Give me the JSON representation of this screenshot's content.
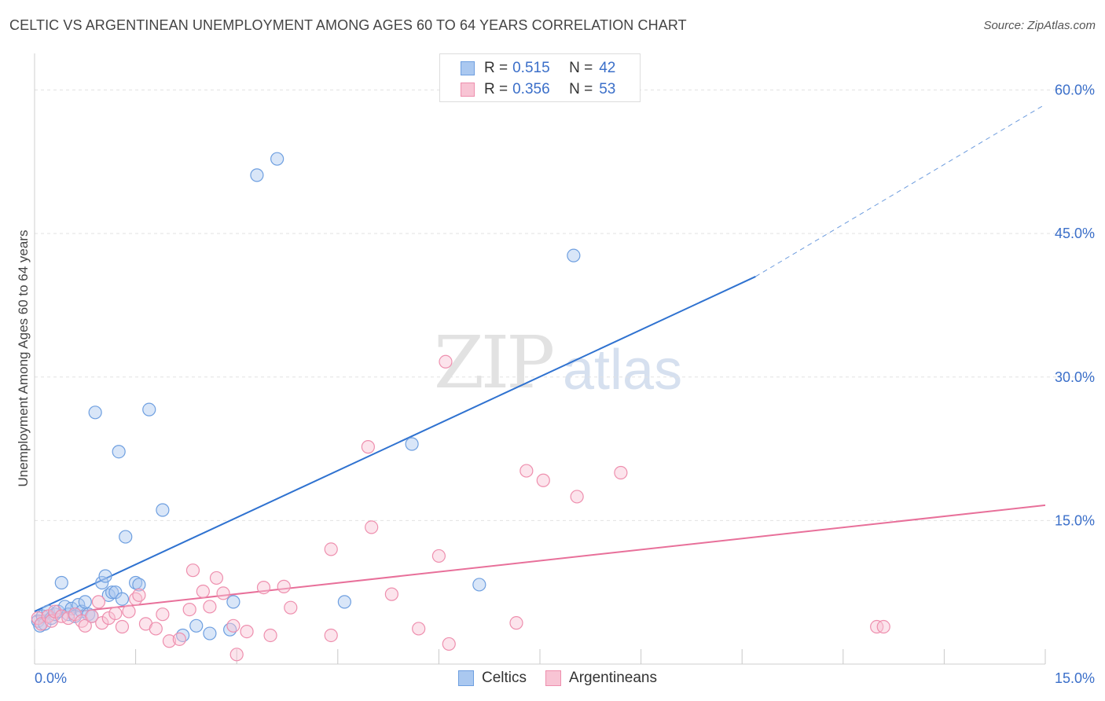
{
  "header": {
    "title": "CELTIC VS ARGENTINEAN UNEMPLOYMENT AMONG AGES 60 TO 64 YEARS CORRELATION CHART",
    "source": "Source: ZipAtlas.com"
  },
  "watermark": {
    "zip": "ZIP",
    "atlas": "atlas"
  },
  "legend_top": [
    {
      "r_label": "R =",
      "r_value": "0.515",
      "n_label": "N =",
      "n_value": "42",
      "color": "#aac8f0",
      "border": "#6e9fe0"
    },
    {
      "r_label": "R =",
      "r_value": "0.356",
      "n_label": "N =",
      "n_value": "53",
      "color": "#f8c4d4",
      "border": "#ee8fae"
    }
  ],
  "legend_bottom": [
    {
      "label": "Celtics",
      "color": "#aac8f0",
      "border": "#6e9fe0"
    },
    {
      "label": "Argentineans",
      "color": "#f8c4d4",
      "border": "#ee8fae"
    }
  ],
  "chart_data": {
    "type": "scatter",
    "title": "CELTIC VS ARGENTINEAN UNEMPLOYMENT AMONG AGES 60 TO 64 YEARS CORRELATION CHART",
    "xlabel": "",
    "ylabel": "Unemployment Among Ages 60 to 64 years",
    "xlim": [
      0,
      15
    ],
    "ylim": [
      0,
      63
    ],
    "x_tick_labels": [
      {
        "value": 0,
        "label": "0.0%"
      },
      {
        "value": 15,
        "label": "15.0%"
      }
    ],
    "y_tick_labels": [
      {
        "value": 15,
        "label": "15.0%"
      },
      {
        "value": 30,
        "label": "30.0%"
      },
      {
        "value": 45,
        "label": "45.0%"
      },
      {
        "value": 60,
        "label": "60.0%"
      }
    ],
    "grid": true,
    "colors": {
      "celtics": "#2f72d0",
      "argentineans": "#e8709a",
      "tick_label": "#3b6fc9"
    },
    "series": [
      {
        "name": "Celtics",
        "points": [
          [
            0.05,
            4.5
          ],
          [
            0.08,
            4.0
          ],
          [
            0.12,
            5.0
          ],
          [
            0.15,
            4.2
          ],
          [
            0.2,
            5.5
          ],
          [
            0.25,
            4.8
          ],
          [
            0.3,
            5.2
          ],
          [
            0.35,
            5.5
          ],
          [
            0.4,
            8.5
          ],
          [
            0.45,
            6.0
          ],
          [
            0.5,
            5.2
          ],
          [
            0.55,
            5.8
          ],
          [
            0.6,
            5.0
          ],
          [
            0.65,
            6.2
          ],
          [
            0.7,
            5.5
          ],
          [
            0.75,
            6.5
          ],
          [
            0.8,
            5.2
          ],
          [
            0.85,
            5.0
          ],
          [
            0.9,
            26.3
          ],
          [
            1.0,
            8.5
          ],
          [
            1.05,
            9.2
          ],
          [
            1.1,
            7.2
          ],
          [
            1.15,
            7.5
          ],
          [
            1.25,
            22.2
          ],
          [
            1.2,
            7.5
          ],
          [
            1.3,
            6.8
          ],
          [
            1.35,
            13.3
          ],
          [
            1.5,
            8.5
          ],
          [
            1.55,
            8.3
          ],
          [
            1.7,
            26.6
          ],
          [
            1.9,
            16.1
          ],
          [
            2.2,
            3.0
          ],
          [
            2.4,
            4.0
          ],
          [
            2.6,
            3.2
          ],
          [
            2.9,
            3.6
          ],
          [
            2.95,
            6.5
          ],
          [
            3.3,
            51.1
          ],
          [
            3.6,
            52.8
          ],
          [
            4.6,
            6.5
          ],
          [
            5.6,
            23.0
          ],
          [
            6.6,
            8.3
          ],
          [
            8.0,
            42.7
          ]
        ]
      },
      {
        "name": "Argentineans",
        "points": [
          [
            0.05,
            4.8
          ],
          [
            0.1,
            4.2
          ],
          [
            0.2,
            5.0
          ],
          [
            0.25,
            4.5
          ],
          [
            0.3,
            5.5
          ],
          [
            0.4,
            5.0
          ],
          [
            0.5,
            4.8
          ],
          [
            0.6,
            5.2
          ],
          [
            0.7,
            4.5
          ],
          [
            0.75,
            4.0
          ],
          [
            0.85,
            5.0
          ],
          [
            0.95,
            6.5
          ],
          [
            1.0,
            4.3
          ],
          [
            1.1,
            4.8
          ],
          [
            1.2,
            5.3
          ],
          [
            1.3,
            3.9
          ],
          [
            1.4,
            5.5
          ],
          [
            1.5,
            6.8
          ],
          [
            1.55,
            7.2
          ],
          [
            1.65,
            4.2
          ],
          [
            1.8,
            3.7
          ],
          [
            1.9,
            5.2
          ],
          [
            2.0,
            2.4
          ],
          [
            2.15,
            2.6
          ],
          [
            2.3,
            5.7
          ],
          [
            2.35,
            9.8
          ],
          [
            2.5,
            7.6
          ],
          [
            2.6,
            6.0
          ],
          [
            2.7,
            9.0
          ],
          [
            2.8,
            7.4
          ],
          [
            2.95,
            4.0
          ],
          [
            3.0,
            1.0
          ],
          [
            3.15,
            3.4
          ],
          [
            3.4,
            8.0
          ],
          [
            3.5,
            3.0
          ],
          [
            3.7,
            8.1
          ],
          [
            3.8,
            5.9
          ],
          [
            4.4,
            12.0
          ],
          [
            4.4,
            3.0
          ],
          [
            4.95,
            22.7
          ],
          [
            5.0,
            14.3
          ],
          [
            5.3,
            7.3
          ],
          [
            5.7,
            3.7
          ],
          [
            6.0,
            11.3
          ],
          [
            6.15,
            2.1
          ],
          [
            6.1,
            31.6
          ],
          [
            7.15,
            4.3
          ],
          [
            7.3,
            20.2
          ],
          [
            7.55,
            19.2
          ],
          [
            8.05,
            17.5
          ],
          [
            8.7,
            20.0
          ],
          [
            12.5,
            3.9
          ],
          [
            12.6,
            3.9
          ]
        ]
      }
    ],
    "trend_lines": [
      {
        "name": "Celtics",
        "x0": 0,
        "y0": 5.5,
        "x1_solid": 10.7,
        "y1_solid": 40.5,
        "x1_dashed": 15,
        "y1_dashed": 58.5
      },
      {
        "name": "Argentineans",
        "x0": 0,
        "y0": 5.0,
        "x1": 15,
        "y1": 16.6
      }
    ]
  }
}
